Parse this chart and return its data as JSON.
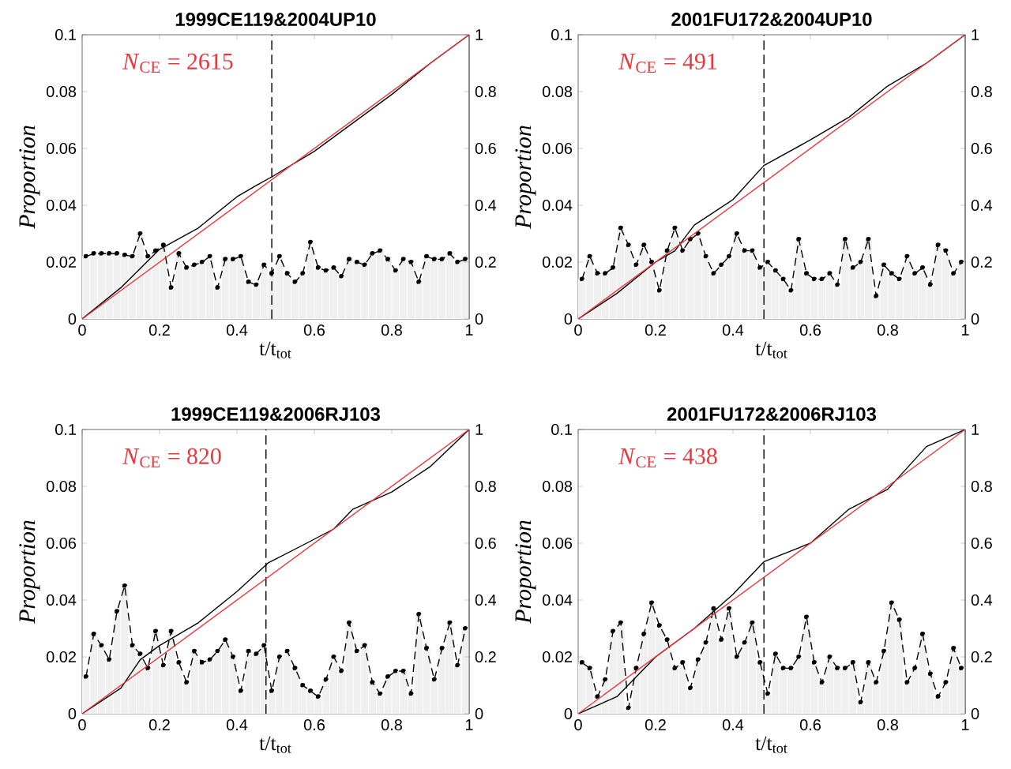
{
  "chart_data": [
    {
      "type": "bar",
      "title": "1999CE119&2004UP10",
      "xlabel": "t/t$_{tot}$",
      "ylabel": "Proportion",
      "annotations": [
        "*N*$_{CE}$ = 2615"
      ],
      "x": [
        0.01,
        0.03,
        0.05,
        0.07,
        0.09,
        0.11,
        0.13,
        0.15,
        0.17,
        0.19,
        0.21,
        0.23,
        0.25,
        0.27,
        0.29,
        0.31,
        0.33,
        0.35,
        0.37,
        0.39,
        0.41,
        0.43,
        0.45,
        0.47,
        0.49,
        0.51,
        0.53,
        0.55,
        0.57,
        0.59,
        0.61,
        0.63,
        0.65,
        0.67,
        0.69,
        0.71,
        0.73,
        0.75,
        0.77,
        0.79,
        0.81,
        0.83,
        0.85,
        0.87,
        0.89,
        0.91,
        0.93,
        0.95,
        0.97,
        0.99
      ],
      "xlim": [
        0,
        1
      ],
      "xticks": [
        0,
        0.2,
        0.4,
        0.6,
        0.8,
        1
      ],
      "ylim": [
        0,
        0.1
      ],
      "yticks": [
        0,
        0.02,
        0.04,
        0.06,
        0.08,
        0.1
      ],
      "y2lim": [
        0,
        1
      ],
      "y2ticks": [
        0,
        0.2,
        0.4,
        0.6,
        0.8,
        1
      ],
      "ref_lines": [
        {
          "axis": "x",
          "value": 0.49,
          "color": "#000000",
          "line_style": "dashed"
        }
      ],
      "series": [
        {
          "color": "#f0f0f0",
          "values": [
            0.022,
            0.023,
            0.023,
            0.023,
            0.023,
            0.0225,
            0.022,
            0.03,
            0.022,
            0.024,
            0.026,
            0.011,
            0.023,
            0.018,
            0.019,
            0.02,
            0.022,
            0.011,
            0.021,
            0.021,
            0.022,
            0.013,
            0.012,
            0.019,
            0.016,
            0.022,
            0.016,
            0.013,
            0.016,
            0.027,
            0.018,
            0.017,
            0.018,
            0.015,
            0.021,
            0.02,
            0.019,
            0.023,
            0.024,
            0.021,
            0.017,
            0.021,
            0.02,
            0.013,
            0.022,
            0.021,
            0.021,
            0.023,
            0.02,
            0.021
          ]
        },
        {
          "type": "line",
          "color": "#000000",
          "marker": "circle",
          "line_style": "dashed",
          "values": [
            0.022,
            0.023,
            0.023,
            0.023,
            0.023,
            0.0225,
            0.022,
            0.03,
            0.022,
            0.024,
            0.026,
            0.011,
            0.023,
            0.018,
            0.019,
            0.02,
            0.022,
            0.011,
            0.021,
            0.021,
            0.022,
            0.013,
            0.012,
            0.019,
            0.016,
            0.022,
            0.016,
            0.013,
            0.016,
            0.027,
            0.018,
            0.017,
            0.018,
            0.015,
            0.021,
            0.02,
            0.019,
            0.023,
            0.024,
            0.021,
            0.017,
            0.021,
            0.02,
            0.013,
            0.022,
            0.021,
            0.021,
            0.023,
            0.02,
            0.021
          ]
        },
        {
          "type": "line",
          "axis": "y2",
          "color": "#000000",
          "x": [
            0,
            0.1,
            0.2,
            0.3,
            0.4,
            0.45,
            0.49,
            0.6,
            0.7,
            0.8,
            0.9,
            1
          ],
          "values": [
            0,
            0.11,
            0.245,
            0.32,
            0.43,
            0.47,
            0.5,
            0.59,
            0.69,
            0.79,
            0.9,
            1
          ]
        },
        {
          "type": "line",
          "axis": "y2",
          "color": "#e8383b",
          "x": [
            0,
            1
          ],
          "values": [
            0,
            1
          ]
        }
      ]
    },
    {
      "type": "bar",
      "title": "2001FU172&2004UP10",
      "xlabel": "t/t$_{tot}$",
      "ylabel": "Proportion",
      "annotations": [
        "*N*$_{CE}$ = 491"
      ],
      "x": [
        0.01,
        0.03,
        0.05,
        0.07,
        0.09,
        0.11,
        0.13,
        0.15,
        0.17,
        0.19,
        0.21,
        0.23,
        0.25,
        0.27,
        0.29,
        0.31,
        0.33,
        0.35,
        0.37,
        0.39,
        0.41,
        0.43,
        0.45,
        0.47,
        0.49,
        0.51,
        0.53,
        0.55,
        0.57,
        0.59,
        0.61,
        0.63,
        0.65,
        0.67,
        0.69,
        0.71,
        0.73,
        0.75,
        0.77,
        0.79,
        0.81,
        0.83,
        0.85,
        0.87,
        0.89,
        0.91,
        0.93,
        0.95,
        0.97,
        0.99
      ],
      "xlim": [
        0,
        1
      ],
      "xticks": [
        0,
        0.2,
        0.4,
        0.6,
        0.8,
        1
      ],
      "ylim": [
        0,
        0.1
      ],
      "yticks": [
        0,
        0.02,
        0.04,
        0.06,
        0.08,
        0.1
      ],
      "y2lim": [
        0,
        1
      ],
      "y2ticks": [
        0,
        0.2,
        0.4,
        0.6,
        0.8,
        1
      ],
      "ref_lines": [
        {
          "axis": "x",
          "value": 0.48,
          "color": "#000000",
          "line_style": "dashed"
        }
      ],
      "series": [
        {
          "color": "#f0f0f0",
          "values": [
            0.014,
            0.022,
            0.016,
            0.016,
            0.018,
            0.032,
            0.026,
            0.019,
            0.026,
            0.02,
            0.01,
            0.024,
            0.032,
            0.024,
            0.028,
            0.03,
            0.022,
            0.016,
            0.019,
            0.022,
            0.03,
            0.024,
            0.024,
            0.018,
            0.02,
            0.017,
            0.014,
            0.01,
            0.028,
            0.016,
            0.014,
            0.014,
            0.016,
            0.012,
            0.028,
            0.018,
            0.02,
            0.028,
            0.008,
            0.019,
            0.016,
            0.014,
            0.022,
            0.016,
            0.018,
            0.012,
            0.026,
            0.024,
            0.016,
            0.02
          ]
        },
        {
          "type": "line",
          "color": "#000000",
          "marker": "circle",
          "line_style": "dashed",
          "values": [
            0.014,
            0.022,
            0.016,
            0.016,
            0.018,
            0.032,
            0.026,
            0.019,
            0.026,
            0.02,
            0.01,
            0.024,
            0.032,
            0.024,
            0.028,
            0.03,
            0.022,
            0.016,
            0.019,
            0.022,
            0.03,
            0.024,
            0.024,
            0.018,
            0.02,
            0.017,
            0.014,
            0.01,
            0.028,
            0.016,
            0.014,
            0.014,
            0.016,
            0.012,
            0.028,
            0.018,
            0.02,
            0.028,
            0.008,
            0.019,
            0.016,
            0.014,
            0.022,
            0.016,
            0.018,
            0.012,
            0.026,
            0.024,
            0.016,
            0.02
          ]
        },
        {
          "type": "line",
          "axis": "y2",
          "color": "#000000",
          "x": [
            0,
            0.1,
            0.2,
            0.25,
            0.3,
            0.4,
            0.48,
            0.6,
            0.7,
            0.8,
            0.9,
            1
          ],
          "values": [
            0,
            0.09,
            0.2,
            0.24,
            0.33,
            0.42,
            0.54,
            0.63,
            0.71,
            0.82,
            0.9,
            1
          ]
        },
        {
          "type": "line",
          "axis": "y2",
          "color": "#e8383b",
          "x": [
            0,
            1
          ],
          "values": [
            0,
            1
          ]
        }
      ]
    },
    {
      "type": "bar",
      "title": "1999CE119&2006RJ103",
      "xlabel": "t/t$_{tot}$",
      "ylabel": "Proportion",
      "annotations": [
        "*N*$_{CE}$ = 820"
      ],
      "x": [
        0.01,
        0.03,
        0.05,
        0.07,
        0.09,
        0.11,
        0.13,
        0.15,
        0.17,
        0.19,
        0.21,
        0.23,
        0.25,
        0.27,
        0.29,
        0.31,
        0.33,
        0.35,
        0.37,
        0.39,
        0.41,
        0.43,
        0.45,
        0.47,
        0.49,
        0.51,
        0.53,
        0.55,
        0.57,
        0.59,
        0.61,
        0.63,
        0.65,
        0.67,
        0.69,
        0.71,
        0.73,
        0.75,
        0.77,
        0.79,
        0.81,
        0.83,
        0.85,
        0.87,
        0.89,
        0.91,
        0.93,
        0.95,
        0.97,
        0.99
      ],
      "xlim": [
        0,
        1
      ],
      "xticks": [
        0,
        0.2,
        0.4,
        0.6,
        0.8,
        1
      ],
      "ylim": [
        0,
        0.1
      ],
      "yticks": [
        0,
        0.02,
        0.04,
        0.06,
        0.08,
        0.1
      ],
      "y2lim": [
        0,
        1
      ],
      "y2ticks": [
        0,
        0.2,
        0.4,
        0.6,
        0.8,
        1
      ],
      "ref_lines": [
        {
          "axis": "x",
          "value": 0.475,
          "color": "#000000",
          "line_style": "dashed"
        }
      ],
      "series": [
        {
          "color": "#f0f0f0",
          "values": [
            0.013,
            0.028,
            0.024,
            0.019,
            0.036,
            0.045,
            0.024,
            0.021,
            0.016,
            0.029,
            0.017,
            0.029,
            0.018,
            0.011,
            0.022,
            0.018,
            0.019,
            0.022,
            0.026,
            0.02,
            0.008,
            0.022,
            0.021,
            0.024,
            0.008,
            0.02,
            0.022,
            0.016,
            0.01,
            0.008,
            0.006,
            0.012,
            0.02,
            0.015,
            0.032,
            0.022,
            0.024,
            0.011,
            0.007,
            0.013,
            0.015,
            0.015,
            0.007,
            0.035,
            0.023,
            0.012,
            0.023,
            0.032,
            0.017,
            0.03
          ]
        },
        {
          "type": "line",
          "color": "#000000",
          "marker": "circle",
          "line_style": "dashed",
          "values": [
            0.013,
            0.028,
            0.024,
            0.019,
            0.036,
            0.045,
            0.024,
            0.021,
            0.016,
            0.029,
            0.017,
            0.029,
            0.018,
            0.011,
            0.022,
            0.018,
            0.019,
            0.022,
            0.026,
            0.02,
            0.008,
            0.022,
            0.021,
            0.024,
            0.008,
            0.02,
            0.022,
            0.016,
            0.01,
            0.008,
            0.006,
            0.012,
            0.02,
            0.015,
            0.032,
            0.022,
            0.024,
            0.011,
            0.007,
            0.013,
            0.015,
            0.015,
            0.007,
            0.035,
            0.023,
            0.012,
            0.023,
            0.032,
            0.017,
            0.03
          ]
        },
        {
          "type": "line",
          "axis": "y2",
          "color": "#000000",
          "x": [
            0,
            0.1,
            0.15,
            0.2,
            0.3,
            0.4,
            0.48,
            0.58,
            0.65,
            0.7,
            0.8,
            0.9,
            1
          ],
          "values": [
            0,
            0.09,
            0.19,
            0.24,
            0.32,
            0.43,
            0.53,
            0.6,
            0.65,
            0.72,
            0.78,
            0.87,
            1
          ]
        },
        {
          "type": "line",
          "axis": "y2",
          "color": "#e8383b",
          "x": [
            0,
            1
          ],
          "values": [
            0,
            1
          ]
        }
      ]
    },
    {
      "type": "bar",
      "title": "2001FU172&2006RJ103",
      "xlabel": "t/t$_{tot}$",
      "ylabel": "Proportion",
      "annotations": [
        "*N*$_{CE}$ = 438"
      ],
      "x": [
        0.01,
        0.03,
        0.05,
        0.07,
        0.09,
        0.11,
        0.13,
        0.15,
        0.17,
        0.19,
        0.21,
        0.23,
        0.25,
        0.27,
        0.29,
        0.31,
        0.33,
        0.35,
        0.37,
        0.39,
        0.41,
        0.43,
        0.45,
        0.47,
        0.49,
        0.51,
        0.53,
        0.55,
        0.57,
        0.59,
        0.61,
        0.63,
        0.65,
        0.67,
        0.69,
        0.71,
        0.73,
        0.75,
        0.77,
        0.79,
        0.81,
        0.83,
        0.85,
        0.87,
        0.89,
        0.91,
        0.93,
        0.95,
        0.97,
        0.99
      ],
      "xlim": [
        0,
        1
      ],
      "xticks": [
        0,
        0.2,
        0.4,
        0.6,
        0.8,
        1
      ],
      "ylim": [
        0,
        0.1
      ],
      "yticks": [
        0,
        0.02,
        0.04,
        0.06,
        0.08,
        0.1
      ],
      "y2lim": [
        0,
        1
      ],
      "y2ticks": [
        0,
        0.2,
        0.4,
        0.6,
        0.8,
        1
      ],
      "ref_lines": [
        {
          "axis": "x",
          "value": 0.48,
          "color": "#000000",
          "line_style": "dashed"
        }
      ],
      "series": [
        {
          "color": "#f0f0f0",
          "values": [
            0.018,
            0.016,
            0.006,
            0.012,
            0.029,
            0.032,
            0.002,
            0.016,
            0.028,
            0.039,
            0.031,
            0.026,
            0.016,
            0.018,
            0.009,
            0.019,
            0.025,
            0.037,
            0.026,
            0.037,
            0.02,
            0.025,
            0.032,
            0.018,
            0.007,
            0.021,
            0.016,
            0.016,
            0.02,
            0.034,
            0.018,
            0.011,
            0.02,
            0.016,
            0.016,
            0.018,
            0.004,
            0.018,
            0.011,
            0.022,
            0.039,
            0.033,
            0.011,
            0.016,
            0.028,
            0.014,
            0.006,
            0.011,
            0.023,
            0.016
          ]
        },
        {
          "type": "line",
          "color": "#000000",
          "marker": "circle",
          "line_style": "dashed",
          "values": [
            0.018,
            0.016,
            0.006,
            0.012,
            0.029,
            0.032,
            0.002,
            0.016,
            0.028,
            0.039,
            0.031,
            0.026,
            0.016,
            0.018,
            0.009,
            0.019,
            0.025,
            0.037,
            0.026,
            0.037,
            0.02,
            0.025,
            0.032,
            0.018,
            0.007,
            0.021,
            0.016,
            0.016,
            0.02,
            0.034,
            0.018,
            0.011,
            0.02,
            0.016,
            0.016,
            0.018,
            0.004,
            0.018,
            0.011,
            0.022,
            0.039,
            0.033,
            0.011,
            0.016,
            0.028,
            0.014,
            0.006,
            0.011,
            0.023,
            0.016
          ]
        },
        {
          "type": "line",
          "axis": "y2",
          "color": "#000000",
          "x": [
            0,
            0.1,
            0.2,
            0.3,
            0.4,
            0.48,
            0.6,
            0.7,
            0.8,
            0.9,
            1
          ],
          "values": [
            0,
            0.06,
            0.2,
            0.3,
            0.42,
            0.535,
            0.6,
            0.72,
            0.79,
            0.94,
            1
          ]
        },
        {
          "type": "line",
          "axis": "y2",
          "color": "#e8383b",
          "x": [
            0,
            1
          ],
          "values": [
            0,
            1
          ]
        }
      ]
    }
  ]
}
